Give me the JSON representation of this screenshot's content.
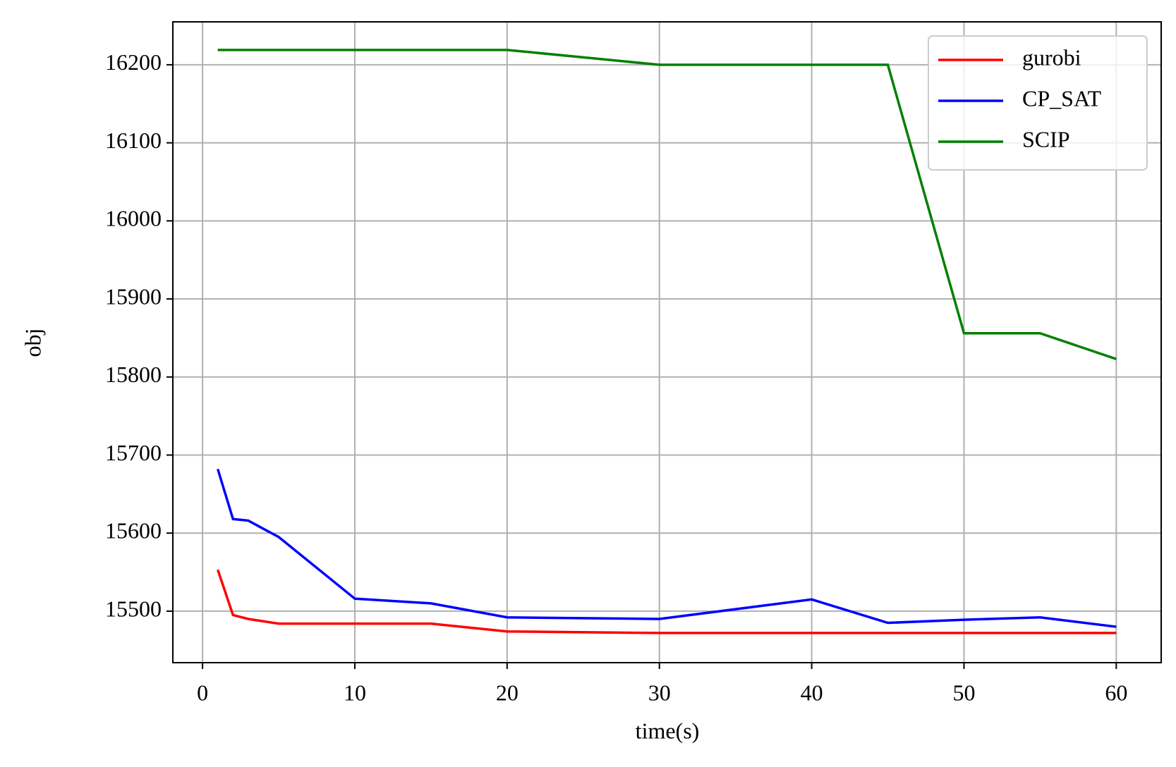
{
  "chart_data": {
    "type": "line",
    "xlabel": "time(s)",
    "ylabel": "obj",
    "x": [
      1,
      2,
      3,
      5,
      10,
      15,
      20,
      30,
      40,
      45,
      50,
      55,
      60
    ],
    "series": [
      {
        "name": "gurobi",
        "color": "#ff0000",
        "values": [
          15553,
          15495,
          15490,
          15484,
          15484,
          15484,
          15474,
          15472,
          15472,
          15472,
          15472,
          15472,
          15472
        ]
      },
      {
        "name": "CP_SAT",
        "color": "#0000ff",
        "values": [
          15682,
          15618,
          15616,
          15595,
          15516,
          15510,
          15492,
          15490,
          15515,
          15485,
          15489,
          15492,
          15480
        ]
      },
      {
        "name": "SCIP",
        "color": "#008000",
        "values": [
          16219,
          16219,
          16219,
          16219,
          16219,
          16219,
          16219,
          16200,
          16200,
          16200,
          15856,
          15856,
          15823
        ]
      }
    ],
    "xlim": [
      -1.95,
      62.95
    ],
    "xticks": [
      0,
      10,
      20,
      30,
      40,
      50,
      60
    ],
    "ylim": [
      15434,
      16255
    ],
    "yticks": [
      15500,
      15600,
      15700,
      15800,
      15900,
      16000,
      16100,
      16200
    ],
    "grid": true,
    "legend": "upper right"
  }
}
